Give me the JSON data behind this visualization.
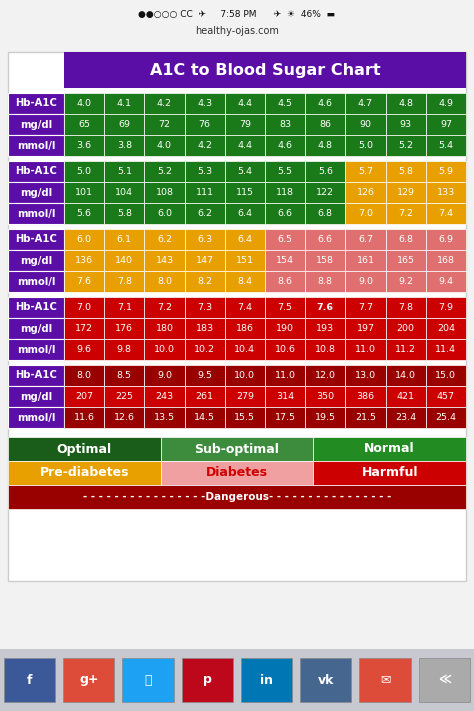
{
  "title": "A1C to Blood Sugar Chart",
  "title_bg": "#5b0ea6",
  "title_color": "#ffffff",
  "header_bg": "#5b0ea6",
  "header_color": "#ffffff",
  "phone_status_bg": "#f0f0f0",
  "phone_status_text": "#000000",
  "status_bar": "7:58 PM    ●●○○○ CC  ✈  ☀  46%",
  "url_bar": "healthy-ojas.com",
  "bottom_bar_bg": "#d0d0d8",
  "chart_outer_bg": "#ffffff",
  "sections": [
    {
      "hba1c": [
        "4.0",
        "4.1",
        "4.2",
        "4.3",
        "4.4",
        "4.5",
        "4.6",
        "4.7",
        "4.8",
        "4.9"
      ],
      "mgdl": [
        "65",
        "69",
        "72",
        "76",
        "79",
        "83",
        "86",
        "90",
        "93",
        "97"
      ],
      "mmol": [
        "3.6",
        "3.8",
        "4.0",
        "4.2",
        "4.4",
        "4.6",
        "4.8",
        "5.0",
        "5.2",
        "5.4"
      ],
      "colors": [
        [
          "#1a7a1a",
          "#1a7a1a",
          "#1a7a1a",
          "#1a7a1a",
          "#1a7a1a",
          "#1a7a1a",
          "#1a7a1a",
          "#1a7a1a",
          "#1a7a1a",
          "#1a7a1a"
        ],
        [
          "#1a7a1a",
          "#1a7a1a",
          "#1a7a1a",
          "#1a7a1a",
          "#1a7a1a",
          "#1a7a1a",
          "#1a7a1a",
          "#1a7a1a",
          "#1a7a1a",
          "#1a7a1a"
        ],
        [
          "#1a7a1a",
          "#1a7a1a",
          "#1a7a1a",
          "#1a7a1a",
          "#1a7a1a",
          "#1a7a1a",
          "#1a7a1a",
          "#1a7a1a",
          "#1a7a1a",
          "#1a7a1a"
        ]
      ],
      "cell_color": "#ffffff"
    },
    {
      "hba1c": [
        "5.0",
        "5.1",
        "5.2",
        "5.3",
        "5.4",
        "5.5",
        "5.6",
        "5.7",
        "5.8",
        "5.9"
      ],
      "mgdl": [
        "101",
        "104",
        "108",
        "111",
        "115",
        "118",
        "122",
        "126",
        "129",
        "133"
      ],
      "mmol": [
        "5.6",
        "5.8",
        "6.0",
        "6.2",
        "6.4",
        "6.6",
        "6.8",
        "7.0",
        "7.2",
        "7.4"
      ],
      "colors": [
        [
          "#1a7a1a",
          "#1a7a1a",
          "#1a7a1a",
          "#1a7a1a",
          "#1a7a1a",
          "#1a7a1a",
          "#1a7a1a",
          "#e8a000",
          "#e8a000",
          "#e8a000"
        ],
        [
          "#1a7a1a",
          "#1a7a1a",
          "#1a7a1a",
          "#1a7a1a",
          "#1a7a1a",
          "#1a7a1a",
          "#1a7a1a",
          "#e8a000",
          "#e8a000",
          "#e8a000"
        ],
        [
          "#1a7a1a",
          "#1a7a1a",
          "#1a7a1a",
          "#1a7a1a",
          "#1a7a1a",
          "#1a7a1a",
          "#1a7a1a",
          "#e8a000",
          "#e8a000",
          "#e8a000"
        ]
      ],
      "cell_color": "#ffffff"
    },
    {
      "hba1c": [
        "6.0",
        "6.1",
        "6.2",
        "6.3",
        "6.4",
        "6.5",
        "6.6",
        "6.7",
        "6.8",
        "6.9"
      ],
      "mgdl": [
        "136",
        "140",
        "143",
        "147",
        "151",
        "154",
        "158",
        "161",
        "165",
        "168"
      ],
      "mmol": [
        "7.6",
        "7.8",
        "8.0",
        "8.2",
        "8.4",
        "8.6",
        "8.8",
        "9.0",
        "9.2",
        "9.4"
      ],
      "colors": [
        [
          "#e8a000",
          "#e8a000",
          "#e8a000",
          "#e8a000",
          "#e8a000",
          "#e07070",
          "#e07070",
          "#e07070",
          "#e07070",
          "#e07070"
        ],
        [
          "#e8a000",
          "#e8a000",
          "#e8a000",
          "#e8a000",
          "#e8a000",
          "#e07070",
          "#e07070",
          "#e07070",
          "#e07070",
          "#e07070"
        ],
        [
          "#e8a000",
          "#e8a000",
          "#e8a000",
          "#e8a000",
          "#e8a000",
          "#e07070",
          "#e07070",
          "#e07070",
          "#e07070",
          "#e07070"
        ]
      ],
      "cell_color": "#ffffff"
    },
    {
      "hba1c": [
        "7.0",
        "7.1",
        "7.2",
        "7.3",
        "7.4",
        "7.5",
        "7.6",
        "7.7",
        "7.8",
        "7.9"
      ],
      "mgdl": [
        "172",
        "176",
        "180",
        "183",
        "186",
        "190",
        "193",
        "197",
        "200",
        "204"
      ],
      "mmol": [
        "9.6",
        "9.8",
        "10.0",
        "10.2",
        "10.4",
        "10.6",
        "10.8",
        "11.0",
        "11.2",
        "11.4"
      ],
      "colors": [
        [
          "#cc0000",
          "#cc0000",
          "#cc0000",
          "#cc0000",
          "#cc0000",
          "#cc0000",
          "#cc0000",
          "#cc0000",
          "#cc0000",
          "#cc0000"
        ],
        [
          "#cc0000",
          "#cc0000",
          "#cc0000",
          "#cc0000",
          "#cc0000",
          "#cc0000",
          "#cc0000",
          "#cc0000",
          "#cc0000",
          "#cc0000"
        ],
        [
          "#cc0000",
          "#cc0000",
          "#cc0000",
          "#cc0000",
          "#cc0000",
          "#cc0000",
          "#cc0000",
          "#cc0000",
          "#cc0000",
          "#cc0000"
        ]
      ],
      "cell_color": "#ffffff",
      "bold_idx": 6
    },
    {
      "hba1c": [
        "8.0",
        "8.5",
        "9.0",
        "9.5",
        "10.0",
        "11.0",
        "12.0",
        "13.0",
        "14.0",
        "15.0"
      ],
      "mgdl": [
        "207",
        "225",
        "243",
        "261",
        "279",
        "314",
        "350",
        "386",
        "421",
        "457"
      ],
      "mmol": [
        "11.6",
        "12.6",
        "13.5",
        "14.5",
        "15.5",
        "17.5",
        "19.5",
        "21.5",
        "23.4",
        "25.4"
      ],
      "colors": [
        [
          "#990000",
          "#990000",
          "#990000",
          "#990000",
          "#990000",
          "#990000",
          "#990000",
          "#990000",
          "#990000",
          "#990000"
        ],
        [
          "#cc0000",
          "#cc0000",
          "#cc0000",
          "#cc0000",
          "#cc0000",
          "#cc0000",
          "#cc0000",
          "#cc0000",
          "#cc0000",
          "#cc0000"
        ],
        [
          "#990000",
          "#990000",
          "#990000",
          "#990000",
          "#990000",
          "#990000",
          "#990000",
          "#990000",
          "#990000",
          "#990000"
        ]
      ],
      "cell_color": "#ffffff"
    }
  ],
  "legend_row1": [
    {
      "label": "Optimal",
      "bg": "#1a5c1a",
      "color": "#ffffff"
    },
    {
      "label": "Sub-optimal",
      "bg": "#3d8b3d",
      "color": "#ffffff"
    },
    {
      "label": "Normal",
      "bg": "#228B22",
      "color": "#ffffff"
    }
  ],
  "legend_row2": [
    {
      "label": "Pre-diabetes",
      "bg": "#e8a000",
      "color": "#ffffff"
    },
    {
      "label": "Diabetes",
      "bg": "#f0a0a0",
      "color": "#cc0000"
    },
    {
      "label": "Harmful",
      "bg": "#cc0000",
      "color": "#ffffff"
    }
  ],
  "legend_row3_label": "- - - - - - - - - - - - - - - -Dangerous- - - - - - - - - - - - - - - -",
  "legend_row3_bg": "#990000",
  "legend_row3_color": "#ffffff",
  "bg_color": "#e8e8e8"
}
